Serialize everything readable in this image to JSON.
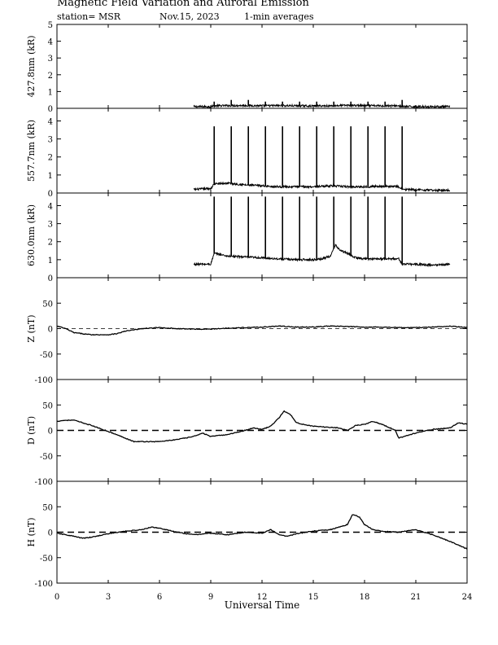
{
  "header": {
    "title": "Magnetic Field Variation and Auroral Emission",
    "station": "station= MSR",
    "date": "Nov.15, 2023",
    "averaging": "1-min averages"
  },
  "chart_data": [
    {
      "type": "line",
      "ylabel": "427.8nm (kR)",
      "ylim": [
        0,
        5
      ],
      "yticks": [
        0,
        1,
        2,
        3,
        4,
        5
      ],
      "xlim": [
        0,
        24
      ],
      "data_start": 8.0,
      "data_end": 23.0,
      "x": [
        8.0,
        9.0,
        9.2,
        10.0,
        11.0,
        12.0,
        13.0,
        14.0,
        15.0,
        16.0,
        17.0,
        18.0,
        19.0,
        20.0,
        20.2,
        21.0,
        22.0,
        23.0
      ],
      "values": [
        0.1,
        0.1,
        0.15,
        0.16,
        0.17,
        0.15,
        0.16,
        0.15,
        0.14,
        0.15,
        0.18,
        0.16,
        0.15,
        0.15,
        0.1,
        0.1,
        0.1,
        0.1
      ],
      "spikes": {
        "x": [
          9.2,
          10.2,
          11.2,
          12.2,
          13.2,
          14.2,
          15.2,
          16.2,
          17.2,
          18.2,
          19.2,
          20.2
        ],
        "values": [
          0.4,
          0.5,
          0.5,
          0.4,
          0.4,
          0.4,
          0.4,
          0.4,
          0.4,
          0.4,
          0.4,
          0.5
        ]
      }
    },
    {
      "type": "line",
      "ylabel": "557.7nm (kR)",
      "ylim": [
        0,
        4.7
      ],
      "yticks": [
        0,
        1,
        2,
        3,
        4
      ],
      "xlim": [
        0,
        24
      ],
      "data_start": 8.0,
      "data_end": 23.0,
      "x": [
        8.0,
        9.0,
        9.2,
        10.0,
        11.0,
        12.0,
        13.0,
        14.0,
        15.0,
        16.0,
        17.0,
        18.0,
        19.0,
        20.0,
        20.2,
        21.0,
        22.0,
        23.0
      ],
      "values": [
        0.2,
        0.25,
        0.5,
        0.55,
        0.45,
        0.4,
        0.35,
        0.35,
        0.35,
        0.4,
        0.35,
        0.35,
        0.38,
        0.35,
        0.2,
        0.18,
        0.15,
        0.15
      ],
      "spikes": {
        "x": [
          9.2,
          10.2,
          11.2,
          12.2,
          13.2,
          14.2,
          15.2,
          16.2,
          17.2,
          18.2,
          19.2,
          20.2
        ],
        "values": [
          3.7,
          3.7,
          3.7,
          3.7,
          3.7,
          3.7,
          3.7,
          3.7,
          3.7,
          3.7,
          3.7,
          3.7
        ]
      }
    },
    {
      "type": "line",
      "ylabel": "630.0nm (kR)",
      "ylim": [
        0,
        4.7
      ],
      "yticks": [
        0,
        1,
        2,
        3,
        4
      ],
      "xlim": [
        0,
        24
      ],
      "data_start": 8.0,
      "data_end": 23.0,
      "x": [
        8.0,
        9.0,
        9.2,
        10.0,
        11.0,
        12.0,
        13.0,
        14.0,
        15.0,
        15.5,
        16.0,
        16.3,
        16.6,
        17.0,
        17.5,
        18.0,
        19.0,
        20.0,
        20.2,
        21.0,
        22.0,
        23.0
      ],
      "values": [
        0.75,
        0.75,
        1.35,
        1.2,
        1.15,
        1.1,
        1.05,
        1.0,
        1.0,
        1.05,
        1.2,
        1.8,
        1.5,
        1.35,
        1.1,
        1.05,
        1.05,
        1.05,
        0.75,
        0.75,
        0.7,
        0.75
      ],
      "spikes": {
        "x": [
          9.2,
          10.2,
          11.2,
          12.2,
          13.2,
          14.2,
          15.2,
          16.2,
          17.2,
          18.2,
          19.2,
          20.2
        ],
        "values": [
          4.5,
          4.5,
          4.5,
          4.5,
          4.5,
          4.5,
          4.5,
          4.5,
          4.5,
          4.5,
          4.5,
          4.5
        ]
      }
    },
    {
      "type": "line",
      "ylabel": "Z (nT)",
      "ylim": [
        -100,
        100
      ],
      "yticks": [
        -100,
        -50,
        0,
        50
      ],
      "xlim": [
        0,
        24
      ],
      "x": [
        0,
        0.5,
        1,
        2,
        3,
        3.5,
        4,
        5,
        6,
        7,
        8,
        9,
        10,
        11,
        12,
        13,
        14,
        15,
        16,
        17,
        18,
        19,
        20,
        21,
        22,
        23,
        24
      ],
      "values": [
        5,
        0,
        -8,
        -12,
        -12,
        -10,
        -5,
        0,
        2,
        0,
        -1,
        -1,
        1,
        2,
        3,
        5,
        3,
        3,
        5,
        4,
        3,
        3,
        2,
        2,
        3,
        5,
        2
      ]
    },
    {
      "type": "line",
      "ylabel": "D (nT)",
      "ylim": [
        -100,
        100
      ],
      "yticks": [
        -100,
        -50,
        0,
        50
      ],
      "xlim": [
        0,
        24
      ],
      "x": [
        0,
        0.5,
        1,
        2,
        3,
        4,
        4.5,
        5,
        6,
        7,
        8,
        8.5,
        9,
        10,
        11,
        11.5,
        12,
        12.5,
        13,
        13.3,
        13.7,
        14,
        15,
        16,
        16.5,
        17,
        17.5,
        18,
        18.5,
        19,
        19.5,
        19.8,
        20,
        21,
        22,
        23,
        23.5,
        24
      ],
      "values": [
        18,
        20,
        20,
        10,
        -2,
        -15,
        -22,
        -22,
        -22,
        -18,
        -12,
        -5,
        -12,
        -8,
        0,
        5,
        2,
        8,
        25,
        38,
        30,
        15,
        8,
        6,
        5,
        0,
        10,
        12,
        18,
        12,
        5,
        0,
        -15,
        -5,
        2,
        5,
        15,
        12
      ]
    },
    {
      "type": "line",
      "ylabel": "H (nT)",
      "ylim": [
        -100,
        100
      ],
      "yticks": [
        -100,
        -50,
        0,
        50
      ],
      "xlim": [
        0,
        24
      ],
      "x": [
        0,
        0.5,
        1,
        1.5,
        2,
        3,
        4,
        5,
        5.5,
        6,
        7,
        8,
        9,
        10,
        11,
        12,
        12.5,
        13,
        13.5,
        14,
        15,
        16,
        16.5,
        17,
        17.3,
        17.7,
        18,
        18.5,
        19,
        20,
        21,
        22,
        23,
        24
      ],
      "values": [
        -2,
        -5,
        -8,
        -12,
        -10,
        -3,
        2,
        5,
        10,
        8,
        0,
        -5,
        -2,
        -5,
        0,
        -2,
        5,
        -5,
        -8,
        -3,
        2,
        5,
        10,
        15,
        35,
        30,
        15,
        5,
        2,
        0,
        5,
        -5,
        -18,
        -33
      ]
    },
    {
      "type": "axis",
      "xlabel": "Universal Time",
      "xticks": [
        0,
        3,
        6,
        9,
        12,
        15,
        18,
        21,
        24
      ]
    }
  ]
}
